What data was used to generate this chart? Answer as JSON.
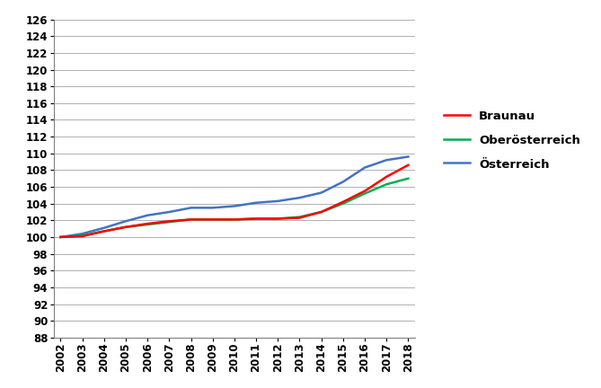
{
  "years": [
    2002,
    2003,
    2004,
    2005,
    2006,
    2007,
    2008,
    2009,
    2010,
    2011,
    2012,
    2013,
    2014,
    2015,
    2016,
    2017,
    2018
  ],
  "braunau": [
    100.0,
    100.1,
    100.7,
    101.2,
    101.6,
    101.9,
    102.1,
    102.1,
    102.1,
    102.2,
    102.2,
    102.3,
    103.0,
    104.2,
    105.5,
    107.2,
    108.6
  ],
  "oberoesterreich": [
    100.0,
    100.2,
    100.7,
    101.2,
    101.5,
    101.8,
    102.1,
    102.1,
    102.1,
    102.2,
    102.2,
    102.4,
    103.0,
    104.0,
    105.2,
    106.3,
    107.0
  ],
  "oesterreich": [
    100.0,
    100.4,
    101.1,
    101.9,
    102.6,
    103.0,
    103.5,
    103.5,
    103.7,
    104.1,
    104.3,
    104.7,
    105.3,
    106.6,
    108.3,
    109.2,
    109.6
  ],
  "braunau_color": "#ff0000",
  "oberoesterreich_color": "#00b050",
  "oesterreich_color": "#4472c4",
  "ylim_min": 88,
  "ylim_max": 126,
  "ytick_step": 2,
  "background_color": "#ffffff",
  "grid_color": "#b0b0b0",
  "legend_labels": [
    "Braunau",
    "Oberösterreich",
    "Österreich"
  ],
  "line_width": 1.8,
  "tick_fontsize": 8.5,
  "legend_fontsize": 9.5
}
